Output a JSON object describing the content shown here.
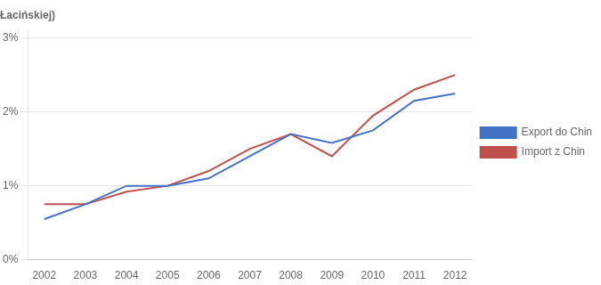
{
  "chart_data": {
    "type": "line",
    "title": "Łacińskiej)",
    "x": [
      2002,
      2003,
      2004,
      2005,
      2006,
      2007,
      2008,
      2009,
      2010,
      2011,
      2012
    ],
    "series": [
      {
        "name": "Export do Chin",
        "color": "#4472C4",
        "values": [
          0.0055,
          0.0075,
          0.01,
          0.01,
          0.011,
          0.014,
          0.017,
          0.0158,
          0.0175,
          0.0215,
          0.0225
        ]
      },
      {
        "name": "Import z Chin",
        "color": "#C0504D",
        "values": [
          0.0075,
          0.0075,
          0.0092,
          0.01,
          0.012,
          0.015,
          0.017,
          0.014,
          0.0195,
          0.023,
          0.025
        ]
      }
    ],
    "xlim": [
      2001.6,
      2012.4
    ],
    "xticks": [
      2002,
      2003,
      2004,
      2005,
      2006,
      2007,
      2008,
      2009,
      2010,
      2011,
      2012
    ],
    "ylim": [
      0,
      0.031
    ],
    "yticks": [
      {
        "value": 0,
        "label": "0%"
      },
      {
        "value": 0.01,
        "label": "1%"
      },
      {
        "value": 0.02,
        "label": "2%"
      },
      {
        "value": 0.03,
        "label": "3%"
      }
    ],
    "grid": true,
    "legend": "right"
  }
}
